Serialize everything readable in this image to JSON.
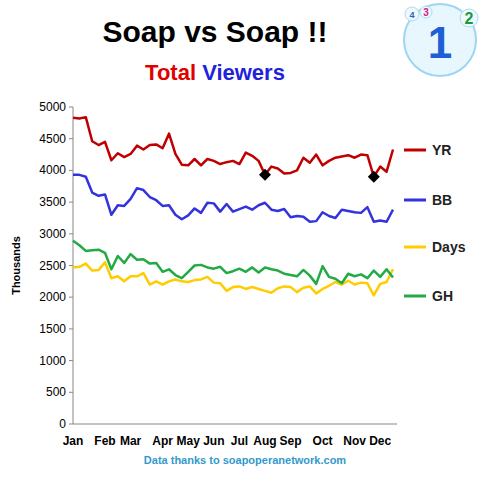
{
  "chart_data": {
    "type": "line",
    "title": "Soap vs Soap !!",
    "subtitle": "Total Viewers",
    "y_label": "Thousands",
    "annotations": [
      "Data thanks to soapoperanetwork.com",
      "1",
      "2",
      "3",
      "4"
    ],
    "categories": [
      "Jan",
      null,
      null,
      null,
      null,
      "Feb",
      null,
      null,
      null,
      "Mar",
      null,
      null,
      null,
      null,
      "Apr",
      null,
      null,
      null,
      "May",
      null,
      null,
      null,
      "Jun",
      null,
      null,
      null,
      "Jul",
      null,
      null,
      null,
      "Aug",
      null,
      null,
      null,
      "Sep",
      null,
      null,
      null,
      null,
      "Oct",
      null,
      null,
      null,
      null,
      "Nov",
      null,
      null,
      null,
      "Dec",
      null,
      null
    ],
    "series": [
      {
        "name": "YR",
        "color": "#c00000",
        "values": [
          4830,
          4820,
          4840,
          4460,
          4400,
          4450,
          4160,
          4270,
          4210,
          4260,
          4390,
          4330,
          4400,
          4410,
          4350,
          4580,
          4260,
          4090,
          4080,
          4180,
          4080,
          4180,
          4150,
          4100,
          4130,
          4150,
          4100,
          4280,
          4230,
          4150,
          3930,
          4060,
          4030,
          3950,
          3960,
          4000,
          4200,
          4120,
          4250,
          4080,
          4150,
          4200,
          4220,
          4240,
          4200,
          4250,
          4240,
          3900,
          4060,
          3980,
          4330
        ]
      },
      {
        "name": "BB",
        "color": "#3333dd",
        "values": [
          3930,
          3930,
          3900,
          3650,
          3600,
          3620,
          3300,
          3450,
          3440,
          3550,
          3720,
          3690,
          3580,
          3530,
          3440,
          3450,
          3300,
          3230,
          3290,
          3400,
          3330,
          3490,
          3480,
          3350,
          3470,
          3350,
          3390,
          3430,
          3380,
          3450,
          3490,
          3380,
          3360,
          3390,
          3260,
          3280,
          3270,
          3190,
          3200,
          3340,
          3280,
          3250,
          3380,
          3360,
          3340,
          3330,
          3420,
          3190,
          3210,
          3190,
          3380
        ]
      },
      {
        "name": "Days",
        "color": "#ffcc00",
        "values": [
          2470,
          2480,
          2530,
          2420,
          2430,
          2550,
          2300,
          2330,
          2250,
          2330,
          2330,
          2380,
          2200,
          2250,
          2200,
          2250,
          2280,
          2250,
          2240,
          2270,
          2280,
          2320,
          2230,
          2220,
          2100,
          2160,
          2170,
          2130,
          2160,
          2130,
          2100,
          2070,
          2140,
          2170,
          2160,
          2080,
          2150,
          2170,
          2060,
          2130,
          2180,
          2240,
          2200,
          2260,
          2200,
          2230,
          2220,
          2030,
          2210,
          2240,
          2440
        ]
      },
      {
        "name": "GH",
        "color": "#22aa44",
        "values": [
          2890,
          2820,
          2730,
          2740,
          2750,
          2700,
          2440,
          2650,
          2540,
          2680,
          2590,
          2600,
          2530,
          2540,
          2400,
          2440,
          2350,
          2300,
          2400,
          2500,
          2510,
          2470,
          2450,
          2480,
          2380,
          2410,
          2450,
          2400,
          2470,
          2390,
          2470,
          2440,
          2420,
          2370,
          2350,
          2330,
          2430,
          2340,
          2210,
          2490,
          2320,
          2290,
          2220,
          2370,
          2330,
          2360,
          2300,
          2420,
          2320,
          2440,
          2310
        ]
      },
      {
        "type": "scatter",
        "marker": "diamond",
        "color": "#000000",
        "values": [
          null,
          null,
          null,
          null,
          null,
          null,
          null,
          null,
          null,
          null,
          null,
          null,
          null,
          null,
          null,
          null,
          null,
          null,
          null,
          null,
          null,
          null,
          null,
          null,
          null,
          null,
          null,
          null,
          null,
          null,
          3930,
          null,
          null,
          null,
          null,
          null,
          null,
          null,
          null,
          null,
          null,
          null,
          null,
          null,
          null,
          null,
          null,
          3900,
          null,
          null,
          null
        ]
      }
    ],
    "ylim": [
      0,
      5000
    ],
    "yticks": [
      0,
      500,
      1000,
      1500,
      2000,
      2500,
      3000,
      3500,
      4000,
      4500,
      5000
    ],
    "grid": false,
    "legend": "right"
  }
}
